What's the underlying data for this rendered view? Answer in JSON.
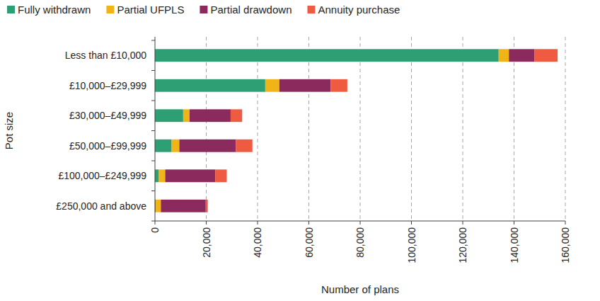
{
  "chart_data": {
    "type": "bar",
    "orientation": "horizontal",
    "stacked": true,
    "grid": true,
    "legend": "top",
    "x_label": "Number of plans",
    "y_label": "Pot size",
    "categories": [
      "Less than £10,000",
      "£10,000–£29,999",
      "£30,000–£49,999",
      "£50,000–£99,999",
      "£100,000–£249,999",
      "£250,000 and above"
    ],
    "series": [
      {
        "name": "Fully withdrawn",
        "color": "#2e9e74",
        "values": [
          134000,
          43000,
          11000,
          6500,
          1500,
          300
        ]
      },
      {
        "name": "Partial UFPLS",
        "color": "#f0b418",
        "values": [
          4000,
          5500,
          2500,
          3000,
          2500,
          2000
        ]
      },
      {
        "name": "Partial drawdown",
        "color": "#8b2a5c",
        "values": [
          10000,
          20000,
          16000,
          22000,
          19500,
          17500
        ]
      },
      {
        "name": "Annuity purchase",
        "color": "#ef5b41",
        "values": [
          9000,
          6500,
          4500,
          6500,
          4500,
          800
        ]
      }
    ],
    "xlim": [
      0,
      160000
    ],
    "xticks": [
      0,
      {
        "value": 20000,
        "label": "20,000"
      },
      {
        "value": 40000,
        "label": "40,000"
      },
      {
        "value": 60000,
        "label": "60,000"
      },
      {
        "value": 80000,
        "label": "80,000"
      },
      {
        "value": 100000,
        "label": "100,000"
      },
      {
        "value": 120000,
        "label": "120,000"
      },
      {
        "value": 140000,
        "label": "140,000"
      },
      {
        "value": 160000,
        "label": "160,000"
      }
    ]
  }
}
